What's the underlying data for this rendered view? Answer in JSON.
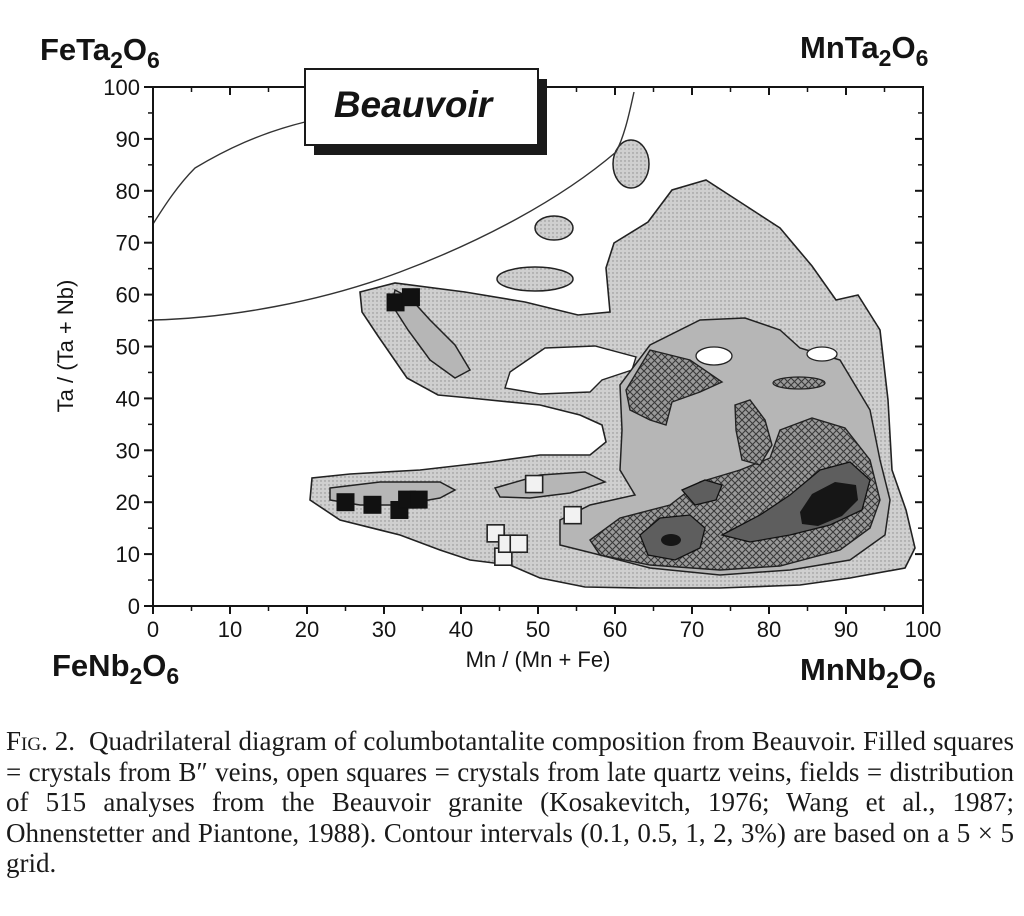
{
  "chart_data": {
    "type": "scatter",
    "title": "Beauvoir",
    "xlabel": "Mn / (Mn + Fe)",
    "ylabel": "Ta / (Ta + Nb)",
    "xlim": [
      0,
      100
    ],
    "ylim": [
      0,
      100
    ],
    "xticks": [
      "0",
      "10",
      "20",
      "30",
      "40",
      "50",
      "60",
      "70",
      "80",
      "90",
      "100"
    ],
    "yticks": [
      "0",
      "10",
      "20",
      "30",
      "40",
      "50",
      "60",
      "70",
      "80",
      "90",
      "100"
    ],
    "grid": false,
    "corner_labels": {
      "top_left": [
        "FeTa",
        "2",
        "O",
        "6"
      ],
      "top_right": [
        "MnTa",
        "2",
        "O",
        "6"
      ],
      "bottom_left": [
        "FeNb",
        "2",
        "O",
        "6"
      ],
      "bottom_right": [
        "MnNb",
        "2",
        "O",
        "6"
      ]
    },
    "series": [
      {
        "marker": "filled-square",
        "points": [
          [
            25,
            20
          ],
          [
            28.5,
            19.5
          ],
          [
            32,
            18.5
          ],
          [
            33,
            20.5
          ],
          [
            34.5,
            20.5
          ],
          [
            31.5,
            58.5
          ],
          [
            33.5,
            59.5
          ]
        ]
      },
      {
        "marker": "open-square",
        "points": [
          [
            44.5,
            14
          ],
          [
            45.5,
            9.5
          ],
          [
            46,
            12
          ],
          [
            47.5,
            12
          ],
          [
            49.5,
            23.5
          ],
          [
            54.5,
            17.5
          ]
        ]
      }
    ],
    "contour_levels": [
      "0.1",
      "0.5",
      "1",
      "2",
      "3%"
    ]
  },
  "caption": {
    "fig_label": "Fig. 2.",
    "text": "Quadrilateral diagram of columbotantalite composition from Beauvoir. Filled squares = crystals from B″ veins, open squares = crystals from late quartz veins, fields = distribution of 515 analyses from the Beauvoir granite (Kosakevitch, 1976; Wang et al., 1987; Ohnenstetter and Piantone, 1988). Contour intervals (0.1, 0.5, 1, 2, 3%) are based on a 5 × 5 grid."
  },
  "colors": {
    "ink": "#141414",
    "field_01": "#d4d4d4",
    "field_05": "#b4b4b4",
    "field_1": "#8e8e8e",
    "field_2": "#5e5e5e",
    "field_3": "#161616"
  }
}
